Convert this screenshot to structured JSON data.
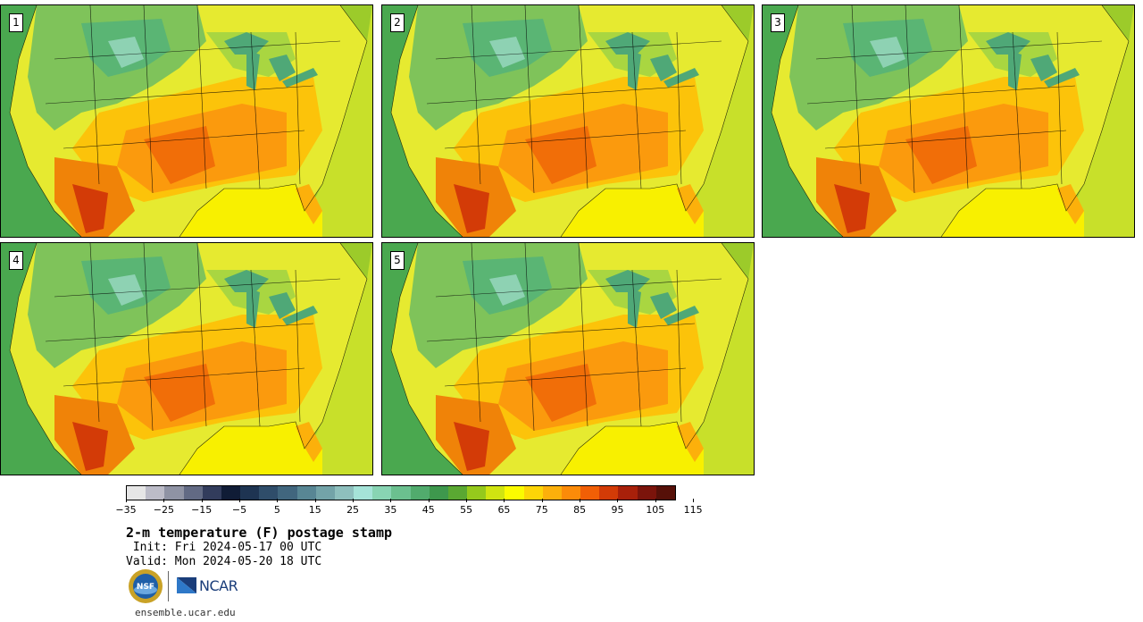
{
  "panels": [
    {
      "label": "1"
    },
    {
      "label": "2"
    },
    {
      "label": "3"
    },
    {
      "label": "4"
    },
    {
      "label": "5"
    }
  ],
  "colorbar": {
    "colors": [
      "#e6e6e6",
      "#bcbcc8",
      "#8f93a4",
      "#626a84",
      "#323c5c",
      "#101c36",
      "#1e3452",
      "#2f4d6a",
      "#41667e",
      "#588694",
      "#73a3a8",
      "#8ebfbd",
      "#a5e3d8",
      "#88d4b3",
      "#6bc08f",
      "#51ab6d",
      "#3e984d",
      "#5aa832",
      "#95c91c",
      "#d0e411",
      "#fbfb00",
      "#fdd507",
      "#fcb00b",
      "#fb8b09",
      "#f15f06",
      "#d33b07",
      "#a8200a",
      "#7b140b",
      "#561008"
    ],
    "ticks": [
      "-35",
      "-25",
      "-15",
      "-5",
      "5",
      "15",
      "25",
      "35",
      "45",
      "55",
      "65",
      "75",
      "85",
      "95",
      "105",
      "115"
    ]
  },
  "title": "2-m temperature (F) postage stamp",
  "init": " Init: Fri 2024-05-17 00 UTC",
  "valid": "Valid: Mon 2024-05-20 18 UTC",
  "logos": {
    "nsf": "NSF",
    "ncar": "NCAR"
  },
  "site": "ensemble.ucar.edu"
}
